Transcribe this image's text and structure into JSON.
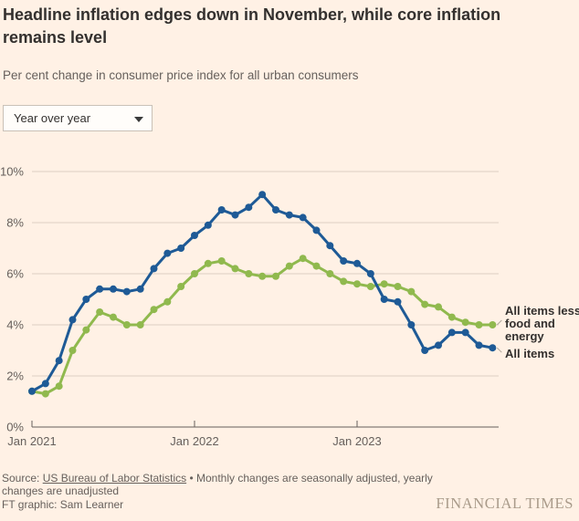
{
  "header": {
    "title": "Headline inflation edges down in November, while core inflation remains level",
    "subtitle": "Per cent change in consumer price index for all urban consumers"
  },
  "controls": {
    "view_dropdown": {
      "value": "Year over year"
    }
  },
  "chart_data": {
    "type": "line",
    "x_categories": [
      "Jan 2021",
      "Feb 2021",
      "Mar 2021",
      "Apr 2021",
      "May 2021",
      "Jun 2021",
      "Jul 2021",
      "Aug 2021",
      "Sep 2021",
      "Oct 2021",
      "Nov 2021",
      "Dec 2021",
      "Jan 2022",
      "Feb 2022",
      "Mar 2022",
      "Apr 2022",
      "May 2022",
      "Jun 2022",
      "Jul 2022",
      "Aug 2022",
      "Sep 2022",
      "Oct 2022",
      "Nov 2022",
      "Dec 2022",
      "Jan 2023",
      "Feb 2023",
      "Mar 2023",
      "Apr 2023",
      "May 2023",
      "Jun 2023",
      "Jul 2023",
      "Aug 2023",
      "Sep 2023",
      "Oct 2023",
      "Nov 2023"
    ],
    "series": [
      {
        "name": "All items less food and energy",
        "color": "#90b94e",
        "values": [
          1.4,
          1.3,
          1.6,
          3.0,
          3.8,
          4.5,
          4.3,
          4.0,
          4.0,
          4.6,
          4.9,
          5.5,
          6.0,
          6.4,
          6.5,
          6.2,
          6.0,
          5.9,
          5.9,
          6.3,
          6.6,
          6.3,
          6.0,
          5.7,
          5.6,
          5.5,
          5.6,
          5.5,
          5.3,
          4.8,
          4.7,
          4.3,
          4.1,
          4.0,
          4.0
        ]
      },
      {
        "name": "All items",
        "color": "#1e5a96",
        "values": [
          1.4,
          1.7,
          2.6,
          4.2,
          5.0,
          5.4,
          5.4,
          5.3,
          5.4,
          6.2,
          6.8,
          7.0,
          7.5,
          7.9,
          8.5,
          8.3,
          8.6,
          9.1,
          8.5,
          8.3,
          8.2,
          7.7,
          7.1,
          6.5,
          6.4,
          6.0,
          5.0,
          4.9,
          4.0,
          3.0,
          3.2,
          3.7,
          3.7,
          3.2,
          3.1
        ]
      }
    ],
    "ylim": [
      0,
      10
    ],
    "y_ticks": [
      0,
      2,
      4,
      6,
      8,
      10
    ],
    "y_tick_suffix": "%",
    "x_tick_labels": [
      "Jan 2021",
      "Jan 2022",
      "Jan 2023"
    ],
    "x_tick_month_index": [
      0,
      12,
      24
    ],
    "grid": true,
    "legend_position": "right-end-labels",
    "title": "Headline inflation edges down in November, while core inflation remains level",
    "xlabel": "",
    "ylabel": "Per cent change in consumer price index for all urban consumers"
  },
  "footer": {
    "source_prefix": "Source: ",
    "source_link": "US Bureau of Labor Statistics",
    "source_rest": " • Monthly changes are seasonally adjusted, yearly changes are unadjusted",
    "credit": "FT graphic: Sam Learner",
    "brand": "FINANCIAL TIMES"
  },
  "colors": {
    "background": "#fff1e5",
    "text_dark": "#33302e",
    "text_muted": "#66605c",
    "grid_line": "#ddd0c4",
    "axis_line": "#66605c",
    "connector": "#b0a79c"
  }
}
